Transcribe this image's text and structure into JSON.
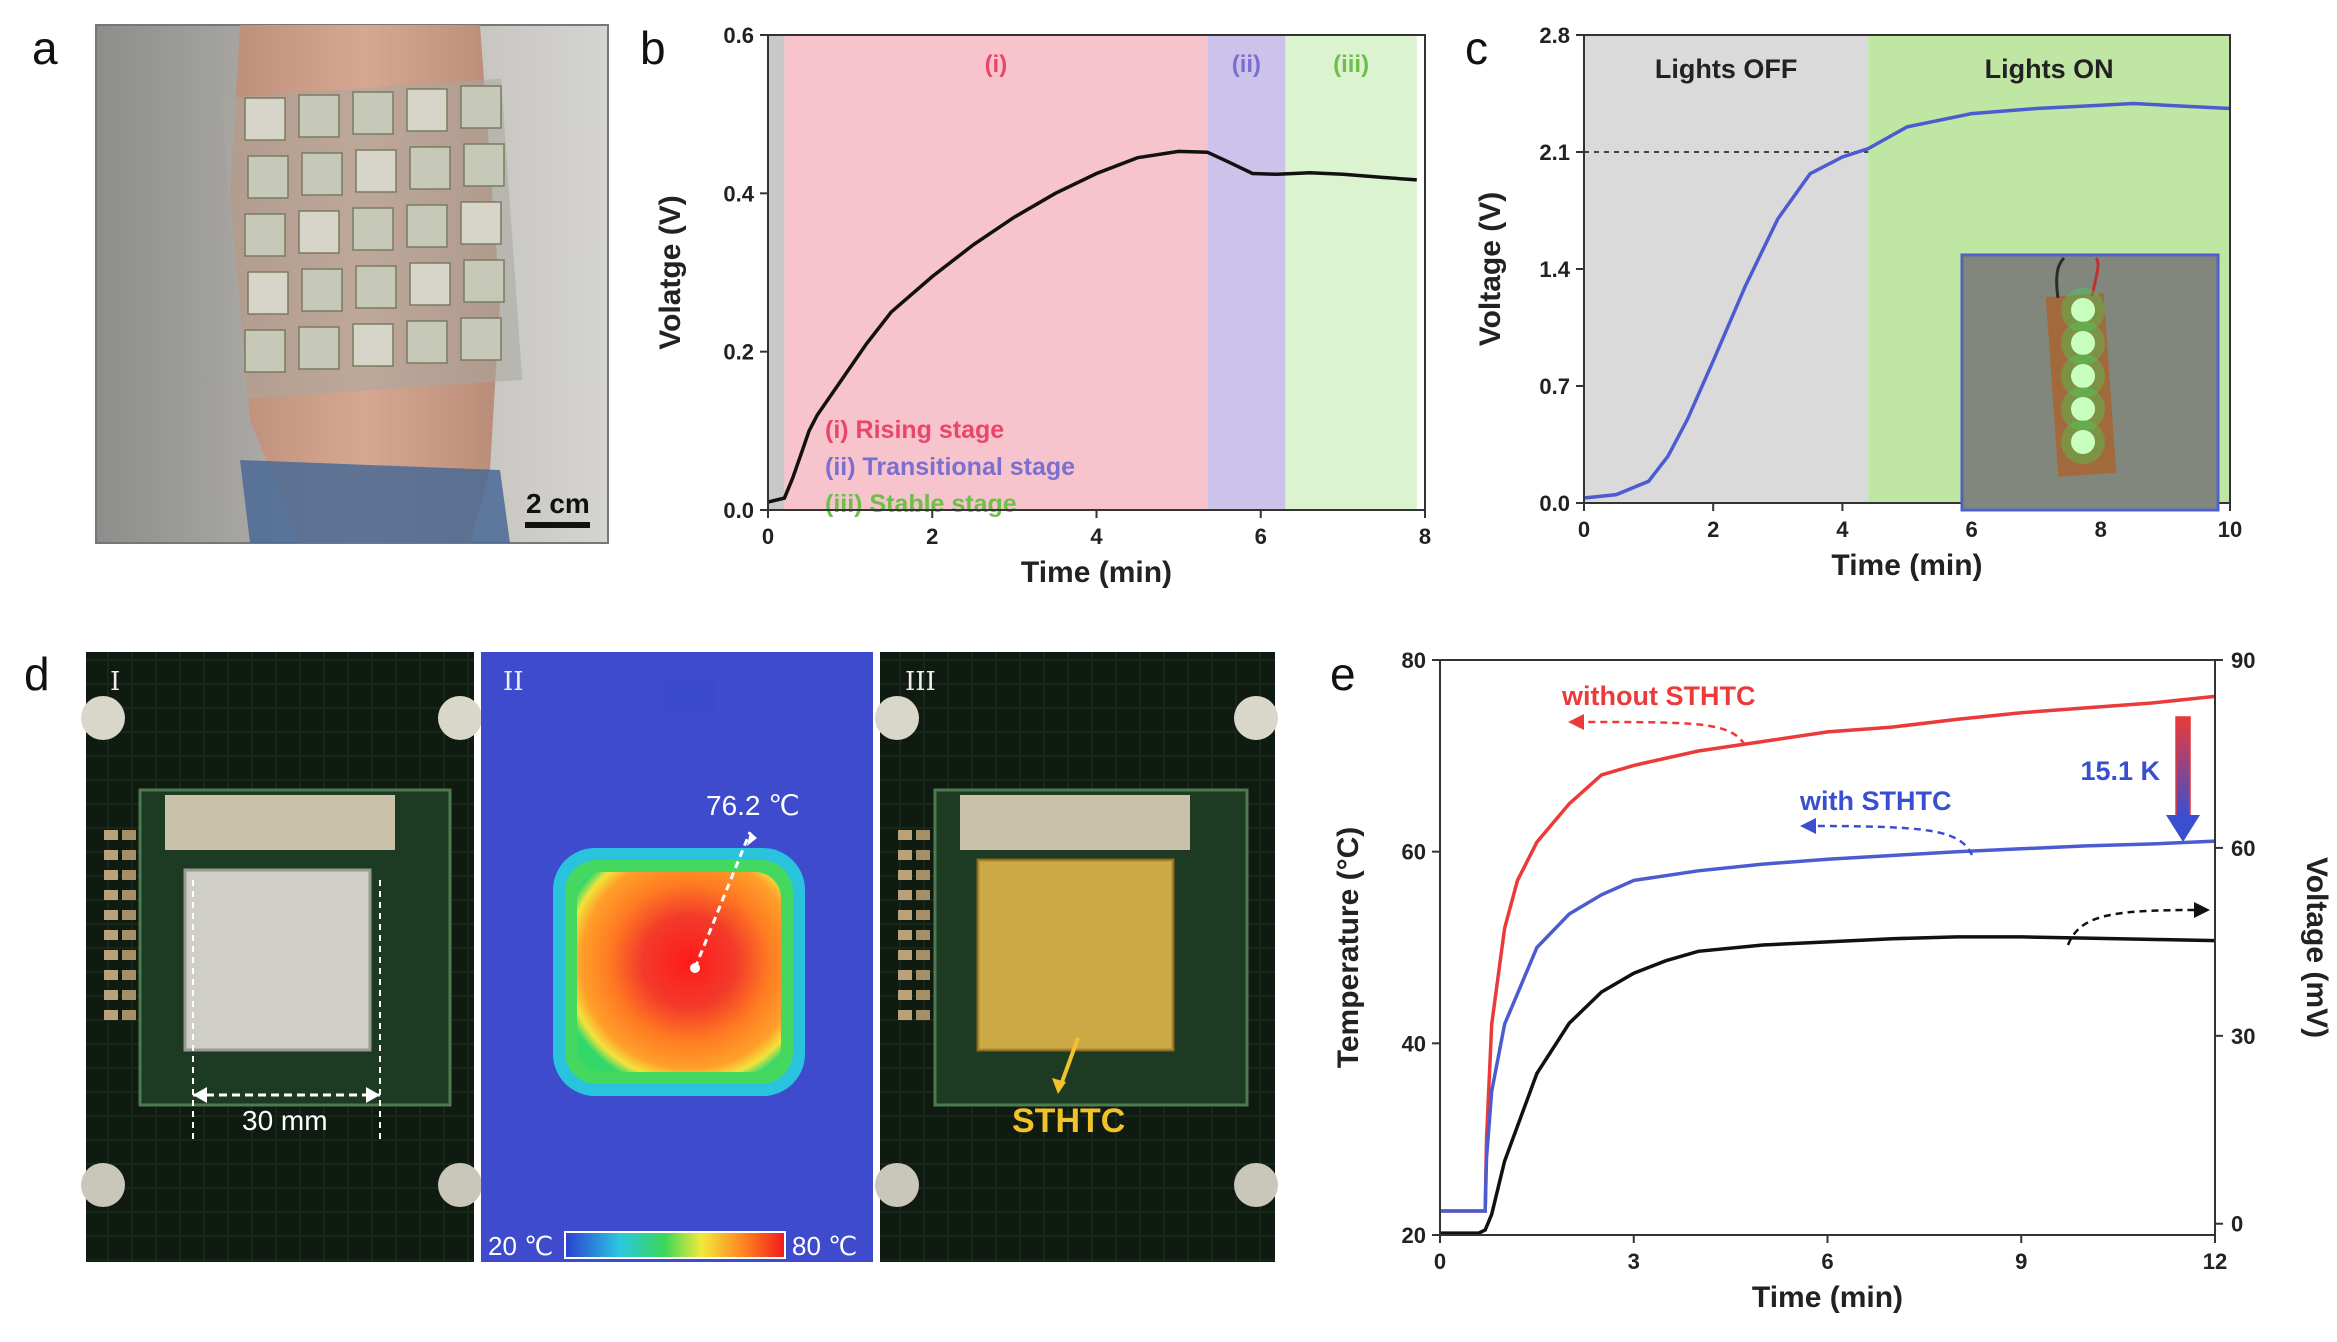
{
  "panels": {
    "a": {
      "letter": "a",
      "scale_bar": "2 cm"
    },
    "d": {
      "letter": "d",
      "subpanels": [
        "I",
        "II",
        "III"
      ],
      "dimension_label": "30 mm",
      "hotspot_label": "76.2 ℃",
      "colorbar_min": "20 ℃",
      "colorbar_max": "80 ℃",
      "material_label": "STHTC"
    }
  },
  "colors": {
    "rising": "#f7c3cd",
    "transitional": "#cdc3ea",
    "stable": "#dcf3d0",
    "lights_off": "#dadada",
    "lights_on": "#bfe7a3",
    "red_curve": "#ea3a3a",
    "blue_curve": "#4a5cd0",
    "black_curve": "#111111"
  },
  "chart_data": [
    {
      "panel": "b",
      "type": "line",
      "xlabel": "Time (min)",
      "ylabel": "Volatge (V)",
      "xlim": [
        0,
        8
      ],
      "ylim": [
        0,
        0.6
      ],
      "xticks": [
        0,
        2,
        4,
        6,
        8
      ],
      "yticks": [
        "0.0",
        "0.2",
        "0.4",
        "0.6"
      ],
      "regions": [
        {
          "name": "(i)",
          "x0": 0.2,
          "x1": 5.35,
          "color": "rising"
        },
        {
          "name": "(ii)",
          "x0": 5.35,
          "x1": 6.3,
          "color": "transitional"
        },
        {
          "name": "(iii)",
          "x0": 6.3,
          "x1": 7.9,
          "color": "stable"
        }
      ],
      "legend": [
        {
          "text": "(i) Rising stage",
          "color": "#e8466a"
        },
        {
          "text": "(ii) Transitional stage",
          "color": "#7a6fd0"
        },
        {
          "text": "(iii) Stable stage",
          "color": "#6cc04a"
        }
      ],
      "series": [
        {
          "color": "#111111",
          "x": [
            0,
            0.2,
            0.3,
            0.4,
            0.5,
            0.6,
            0.8,
            1.0,
            1.2,
            1.5,
            2.0,
            2.5,
            3.0,
            3.5,
            4.0,
            4.5,
            5.0,
            5.35,
            5.6,
            5.9,
            6.2,
            6.6,
            7.0,
            7.5,
            7.9
          ],
          "y": [
            0.01,
            0.015,
            0.04,
            0.07,
            0.1,
            0.12,
            0.15,
            0.18,
            0.21,
            0.25,
            0.295,
            0.335,
            0.37,
            0.4,
            0.425,
            0.445,
            0.453,
            0.452,
            0.44,
            0.425,
            0.424,
            0.426,
            0.424,
            0.42,
            0.417
          ]
        }
      ]
    },
    {
      "panel": "c",
      "type": "line",
      "xlabel": "Time (min)",
      "ylabel": "Voltage (V)",
      "xlim": [
        0,
        10
      ],
      "ylim": [
        0,
        2.8
      ],
      "xticks": [
        0,
        2,
        4,
        6,
        8,
        10
      ],
      "yticks": [
        "0.0",
        "0.7",
        "1.4",
        "2.1",
        "2.8"
      ],
      "regions": [
        {
          "name": "Lights OFF",
          "x0": 0,
          "x1": 4.4,
          "color": "lights_off"
        },
        {
          "name": "Lights ON",
          "x0": 4.4,
          "x1": 10,
          "color": "lights_on"
        }
      ],
      "reference_line": 2.1,
      "series": [
        {
          "color": "#4a5cd0",
          "x": [
            0,
            0.5,
            1.0,
            1.3,
            1.6,
            2.0,
            2.5,
            3.0,
            3.5,
            4.0,
            4.4,
            5.0,
            6.0,
            7.0,
            8.0,
            8.5,
            9.0,
            10.0
          ],
          "y": [
            0.03,
            0.05,
            0.13,
            0.28,
            0.5,
            0.85,
            1.3,
            1.7,
            1.97,
            2.07,
            2.12,
            2.25,
            2.33,
            2.36,
            2.38,
            2.39,
            2.38,
            2.36
          ]
        }
      ]
    },
    {
      "panel": "e",
      "type": "line",
      "xlabel": "Time (min)",
      "ylabel": "Temperature (°C)",
      "y2label": "Voltage (mV)",
      "xlim": [
        0,
        12
      ],
      "ylim": [
        20,
        80
      ],
      "y2lim": [
        -1.8,
        90
      ],
      "xticks": [
        0,
        3,
        6,
        9,
        12
      ],
      "yticks": [
        20,
        40,
        60,
        80
      ],
      "y2ticks": [
        0,
        30,
        60,
        90
      ],
      "annotations": [
        "without STHTC",
        "with STHTC",
        "15.1 K"
      ],
      "series": [
        {
          "name": "without STHTC",
          "axis": "left",
          "color": "#ea3a3a",
          "x": [
            0,
            0.7,
            0.72,
            0.8,
            1.0,
            1.2,
            1.5,
            2.0,
            2.5,
            3.0,
            4.0,
            5.0,
            6.0,
            7.0,
            8.0,
            9.0,
            10.0,
            11.0,
            12.0
          ],
          "y": [
            22.5,
            22.5,
            30,
            42,
            52,
            57,
            61,
            65,
            68,
            69,
            70.5,
            71.5,
            72.5,
            73,
            73.8,
            74.5,
            75,
            75.5,
            76.2
          ]
        },
        {
          "name": "with STHTC",
          "axis": "left",
          "color": "#4a5cd0",
          "x": [
            0,
            0.7,
            0.72,
            0.8,
            1.0,
            1.5,
            2.0,
            2.5,
            3.0,
            4.0,
            5.0,
            6.0,
            7.0,
            8.0,
            9.0,
            10.0,
            11.0,
            12.0
          ],
          "y": [
            22.5,
            22.5,
            28,
            35,
            42,
            50,
            53.5,
            55.5,
            57,
            58,
            58.7,
            59.2,
            59.6,
            60,
            60.3,
            60.6,
            60.8,
            61.1
          ]
        },
        {
          "axis": "right",
          "color": "#111111",
          "x": [
            0,
            0.6,
            0.7,
            0.8,
            1.0,
            1.5,
            2.0,
            2.5,
            3.0,
            3.5,
            4.0,
            5.0,
            6.0,
            7.0,
            8.0,
            9.0,
            10.0,
            11.0,
            12.0
          ],
          "y": [
            -1.5,
            -1.5,
            -1.0,
            1.5,
            10,
            24,
            32,
            37,
            40,
            42,
            43.5,
            44.5,
            45,
            45.5,
            45.8,
            45.8,
            45.6,
            45.4,
            45.2
          ]
        }
      ]
    }
  ]
}
